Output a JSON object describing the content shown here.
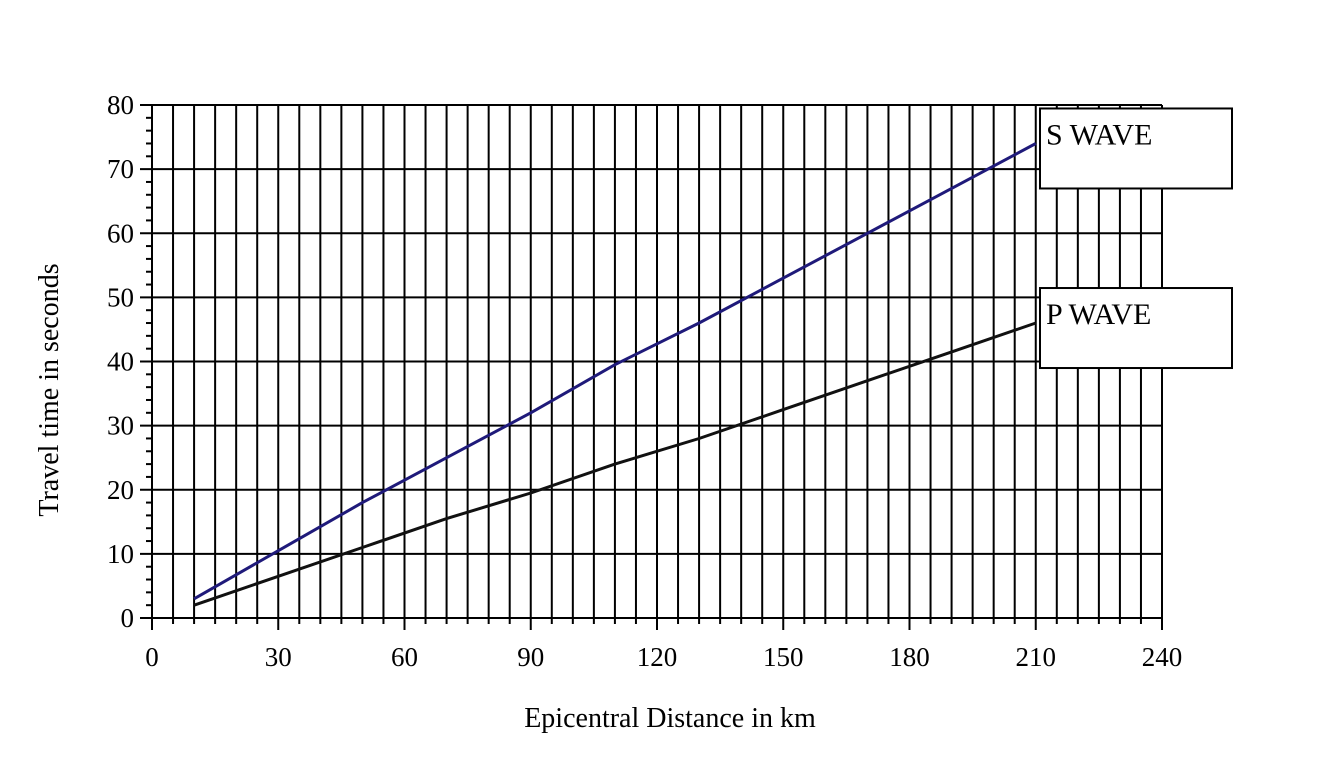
{
  "chart_data": {
    "type": "line",
    "xlabel": "Epicentral  Distance  in km",
    "ylabel": "Travel  time  in  seconds",
    "xlim": [
      0,
      240
    ],
    "ylim": [
      0,
      80
    ],
    "x_ticks": [
      "0",
      "30",
      "60",
      "90",
      "120",
      "150",
      "180",
      "210",
      "240"
    ],
    "y_ticks": [
      "0",
      "10",
      "20",
      "30",
      "40",
      "50",
      "60",
      "70",
      "80"
    ],
    "grid": true,
    "x": [
      10,
      30,
      50,
      70,
      90,
      110,
      130,
      150,
      170,
      190,
      210
    ],
    "series": [
      {
        "name": "S WAVE",
        "color": "#1f1a7a",
        "values": [
          3,
          10.5,
          18,
          25,
          32,
          39.5,
          46,
          53,
          60,
          67,
          74
        ]
      },
      {
        "name": "P WAVE",
        "color": "#111111",
        "values": [
          2,
          6.5,
          11,
          15.5,
          19.5,
          24,
          28,
          32.5,
          37,
          41.5,
          46
        ]
      }
    ]
  }
}
